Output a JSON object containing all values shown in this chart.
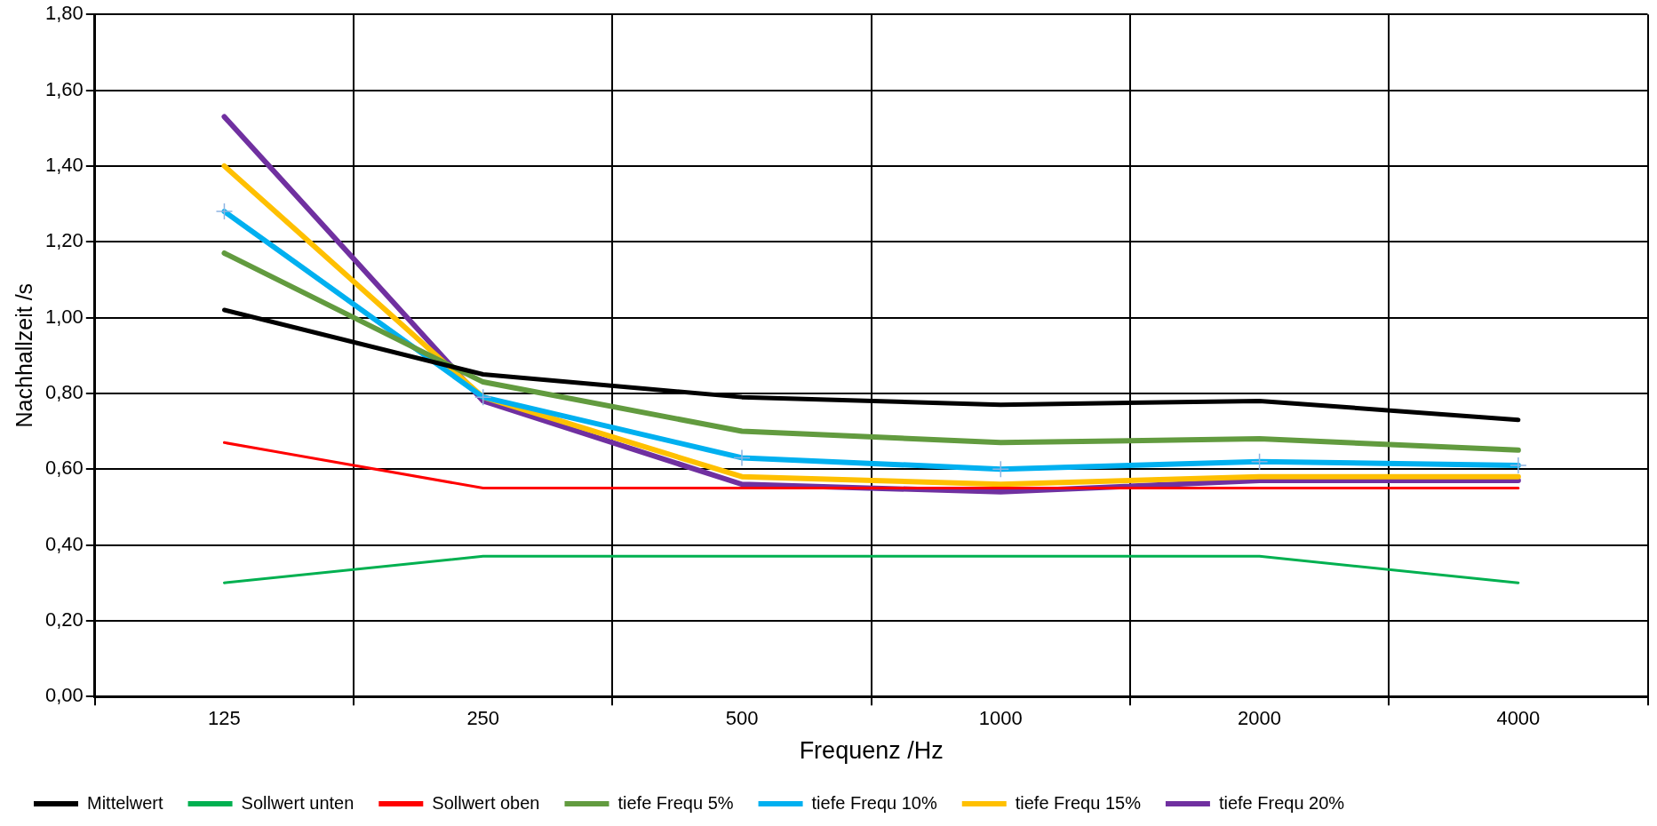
{
  "chart_data": {
    "type": "line",
    "xlabel": "Frequenz /Hz",
    "ylabel": "Nachhallzeit /s",
    "categories": [
      "125",
      "250",
      "500",
      "1000",
      "2000",
      "4000"
    ],
    "ylim": [
      0,
      1.8
    ],
    "yticks": [
      {
        "value": 0,
        "label": "0,00"
      },
      {
        "value": 0.2,
        "label": "0,20"
      },
      {
        "value": 0.4,
        "label": "0,40"
      },
      {
        "value": 0.6,
        "label": "0,60"
      },
      {
        "value": 0.8,
        "label": "0,80"
      },
      {
        "value": 1.0,
        "label": "1,00"
      },
      {
        "value": 1.2,
        "label": "1,20"
      },
      {
        "value": 1.4,
        "label": "1,40"
      },
      {
        "value": 1.6,
        "label": "1,60"
      },
      {
        "value": 1.8,
        "label": "1,80"
      }
    ],
    "grid": true,
    "legend": "bottom",
    "marker": "none",
    "line_style": "solid",
    "series": [
      {
        "name": "Mittelwert",
        "color": "#000000",
        "values": [
          1.02,
          0.85,
          0.79,
          0.77,
          0.78,
          0.73
        ]
      },
      {
        "name": "Sollwert unten",
        "color": "#00b050",
        "values": [
          0.3,
          0.37,
          0.37,
          0.37,
          0.37,
          0.3
        ]
      },
      {
        "name": "Sollwert oben",
        "color": "#ff0000",
        "values": [
          0.67,
          0.55,
          0.55,
          0.55,
          0.55,
          0.55
        ]
      },
      {
        "name": "tiefe Frequ 5%",
        "color": "#629b3f",
        "values": [
          1.17,
          0.83,
          0.7,
          0.67,
          0.68,
          0.65
        ]
      },
      {
        "name": "tiefe Frequ 10%",
        "color": "#00b0f0",
        "marker": "cross",
        "values": [
          1.28,
          0.79,
          0.63,
          0.6,
          0.62,
          0.61
        ]
      },
      {
        "name": "tiefe Frequ 15%",
        "color": "#ffc000",
        "values": [
          1.4,
          0.79,
          0.58,
          0.56,
          0.58,
          0.58
        ]
      },
      {
        "name": "tiefe Frequ 20%",
        "color": "#7030a0",
        "values": [
          1.53,
          0.78,
          0.56,
          0.54,
          0.57,
          0.57
        ]
      }
    ]
  }
}
